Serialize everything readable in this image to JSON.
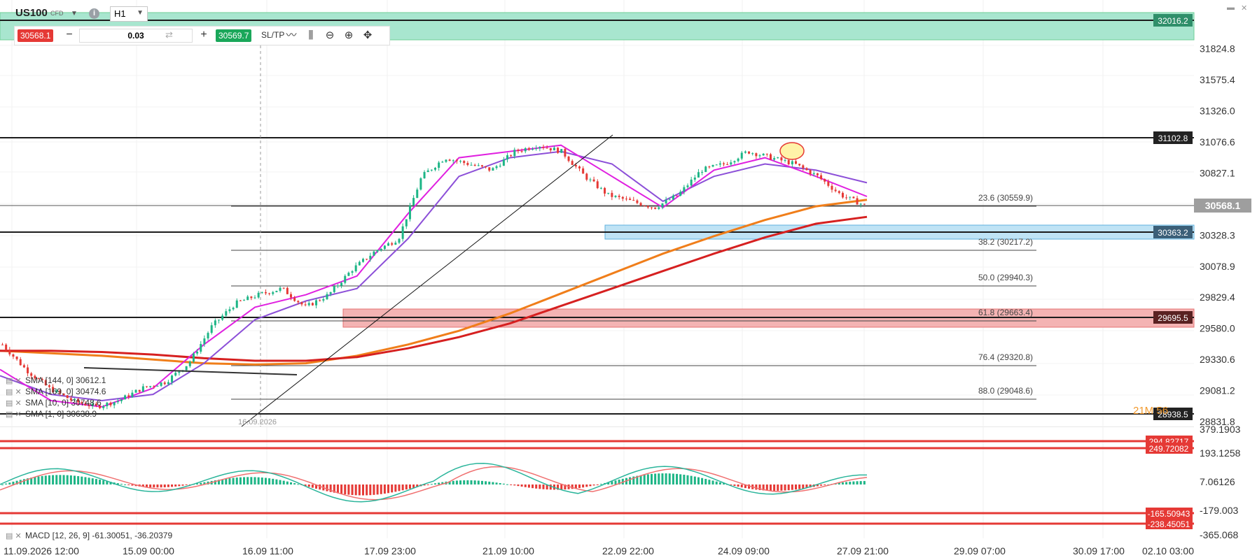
{
  "header": {
    "symbol": "US100",
    "symbol_type": "CFD",
    "info_icon": "info-icon",
    "timeframe": "H1",
    "window_controls": [
      "minimize-icon",
      "close-icon"
    ]
  },
  "trade_bar": {
    "sell_price": "30568.1",
    "quantity": "0.03",
    "buy_price": "30569.7",
    "sl_tp_label": "SL/TP",
    "tools": [
      "line-chart-icon",
      "candles-icon",
      "zoom-out-icon",
      "zoom-in-icon",
      "crosshair-move-icon"
    ]
  },
  "colors": {
    "bull": "#1db586",
    "bear": "#e53935",
    "green_zone": "#a8e6cf",
    "red_zone": "#f4b3b3",
    "blue_zone": "#bfe3f5",
    "sma_orange": "#f07e1a",
    "sma_red": "#d62020",
    "sma_purple": "#8c4fd8",
    "sma_magenta": "#e020e0",
    "macd_line": "#2bb59b",
    "signal_line": "#f07070"
  },
  "price_axis": {
    "ticks": [
      "31824.8",
      "31575.4",
      "31326.0",
      "31076.6",
      "30827.1",
      "30328.3",
      "30078.9",
      "29829.4",
      "29580.0",
      "29330.6",
      "29081.2",
      "28831.8"
    ],
    "current_price_label": "30568.1",
    "level_labels": [
      "32016.2",
      "31102.8",
      "30363.2",
      "29695.5",
      "28938.5"
    ],
    "overlay_text": "21M 56"
  },
  "fib_labels": [
    "23.6 (30559.9)",
    "38.2 (30217.2)",
    "50.0 (29940.3)",
    "61.8 (29663.4)",
    "76.4 (29320.8)",
    "88.0 (29048.6)"
  ],
  "indicators": {
    "sma_legend": [
      "SMA [144, 0] 30612.1",
      "SMA [169, 0] 30474.6",
      "SMA [10, 0] 30748.6",
      "SMA [1, 0] 30638.9"
    ],
    "macd_legend": "MACD [12, 26, 9] -61.30051, -36.20379",
    "vertical_marker_label": "16.09.2026"
  },
  "macd_axis": {
    "ticks": [
      "379.1903",
      "193.1258",
      "7.06126",
      "-179.003",
      "-365.068"
    ],
    "level_labels": [
      "294.82717",
      "249.72082",
      "-165.50943",
      "-238.45051"
    ]
  },
  "time_axis": [
    "11.09.2026 12:00",
    "15.09 00:00",
    "16.09 11:00",
    "17.09 23:00",
    "21.09 10:00",
    "22.09 22:00",
    "24.09 09:00",
    "27.09 21:00",
    "29.09 07:00",
    "30.09 17:00",
    "02.10 03:00"
  ],
  "chart_data": {
    "type": "candlestick",
    "series": [
      {
        "name": "SMA [144, 0] 30612.1",
        "values": [
          29400,
          29380,
          29360,
          29330,
          29300,
          29290,
          29300,
          29360,
          29450,
          29560,
          29700,
          29860,
          30020,
          30180,
          30320,
          30450,
          30560,
          30612
        ]
      },
      {
        "name": "SMA [169, 0] 30474.6",
        "values": [
          29400,
          29400,
          29390,
          29370,
          29340,
          29320,
          29320,
          29350,
          29420,
          29510,
          29620,
          29760,
          29900,
          30040,
          30180,
          30310,
          30420,
          30475
        ]
      },
      {
        "name": "SMA [10, 0] 30748.6",
        "values": [
          29200,
          29050,
          29000,
          29050,
          29300,
          29650,
          29800,
          29900,
          30300,
          30800,
          30950,
          31000,
          30900,
          30600,
          30800,
          30900,
          30850,
          30749
        ]
      },
      {
        "name": "SMA [1, 0] 30638.9",
        "values": [
          29250,
          29000,
          28950,
          29100,
          29450,
          29750,
          29850,
          30000,
          30500,
          30950,
          31000,
          31050,
          30800,
          30550,
          30850,
          30950,
          30800,
          30639
        ]
      }
    ],
    "close_path": [
      29450,
      29250,
      29100,
      29000,
      28950,
      29000,
      29100,
      29150,
      29300,
      29600,
      29780,
      29850,
      29900,
      29750,
      29850,
      30050,
      30200,
      30300,
      30800,
      30950,
      30900,
      30850,
      31000,
      31050,
      31000,
      30800,
      30650,
      30600,
      30550,
      30650,
      30850,
      30900,
      31000,
      30950,
      30900,
      30800,
      30650,
      30568
    ]
  }
}
